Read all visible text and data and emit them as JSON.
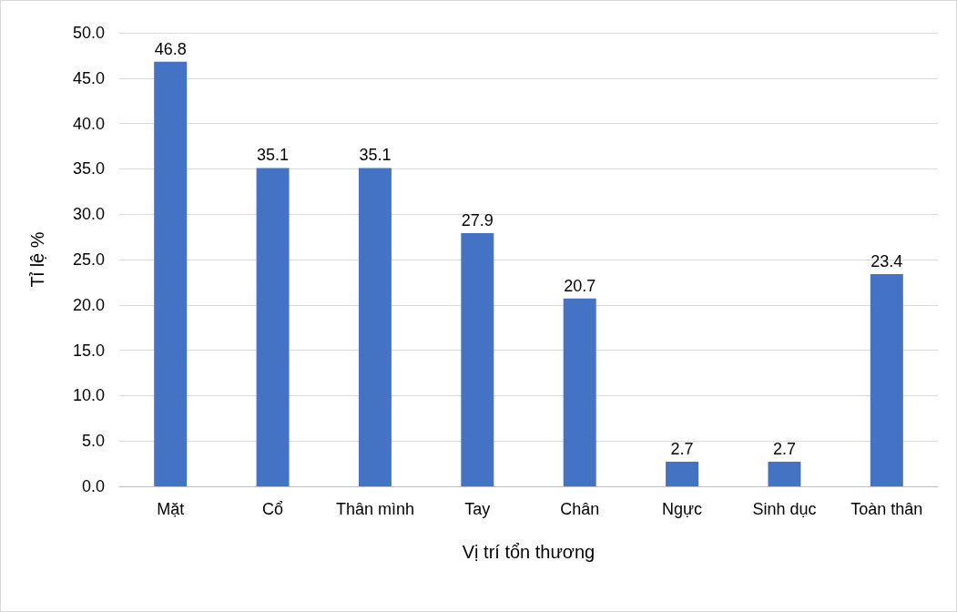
{
  "chart_data": {
    "type": "bar",
    "xlabel": "Vị trí tổn thương",
    "ylabel": "Tỉ lệ %",
    "categories": [
      "Mặt",
      "Cổ",
      "Thân mình",
      "Tay",
      "Chân",
      "Ngực",
      "Sinh dục",
      "Toàn thân"
    ],
    "values": [
      46.8,
      35.1,
      35.1,
      27.9,
      20.7,
      2.7,
      2.7,
      23.4
    ],
    "color": "#4472c4",
    "ylim": [
      0,
      50
    ],
    "yticks": [
      {
        "value": 0,
        "label": "0.0"
      },
      {
        "value": 5,
        "label": "5.0"
      },
      {
        "value": 10,
        "label": "10.0"
      },
      {
        "value": 15,
        "label": "15.0"
      },
      {
        "value": 20,
        "label": "20.0"
      },
      {
        "value": 25,
        "label": "25.0"
      },
      {
        "value": 30,
        "label": "30.0"
      },
      {
        "value": 35,
        "label": "35.0"
      },
      {
        "value": 40,
        "label": "40.0"
      },
      {
        "value": 45,
        "label": "45.0"
      },
      {
        "value": 50,
        "label": "50.0"
      }
    ],
    "grid": "y",
    "data_labels": true
  }
}
